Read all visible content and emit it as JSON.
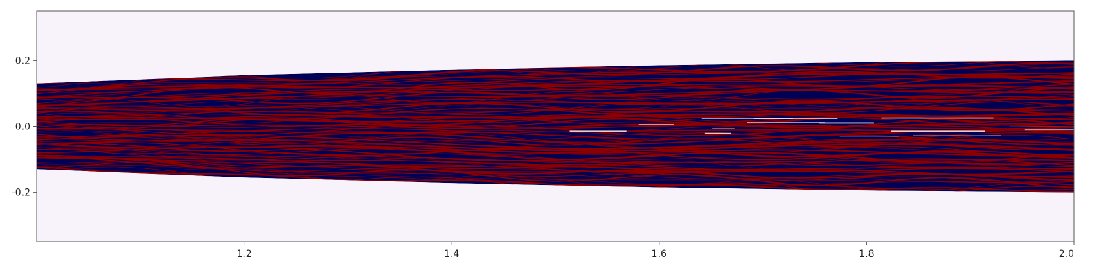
{
  "chart_data": {
    "type": "heatmap",
    "title": "",
    "xlabel": "",
    "ylabel": "",
    "xlim": [
      1.0,
      2.0
    ],
    "ylim": [
      -0.35,
      0.35
    ],
    "x_ticks": [
      {
        "value": 1.2,
        "label": "1.2"
      },
      {
        "value": 1.4,
        "label": "1.4"
      },
      {
        "value": 1.6,
        "label": "1.6"
      },
      {
        "value": 1.8,
        "label": "1.8"
      },
      {
        "value": 2.0,
        "label": "2.0"
      }
    ],
    "y_ticks": [
      {
        "value": 0.2,
        "label": "0.2"
      },
      {
        "value": 0.0,
        "label": "0.0"
      },
      {
        "value": -0.2,
        "label": "-0.2"
      }
    ],
    "band_envelope": {
      "x": [
        1.0,
        1.2,
        1.4,
        1.6,
        1.8,
        2.0
      ],
      "upper": [
        0.13,
        0.155,
        0.172,
        0.185,
        0.195,
        0.2
      ],
      "lower": [
        -0.13,
        -0.155,
        -0.172,
        -0.185,
        -0.195,
        -0.2
      ]
    },
    "grid": false,
    "colors": {
      "background": "#f8f3fa",
      "positive": "#8b0000",
      "negative": "#000055",
      "highlight": "#ffffff",
      "frame": "#555555"
    }
  }
}
